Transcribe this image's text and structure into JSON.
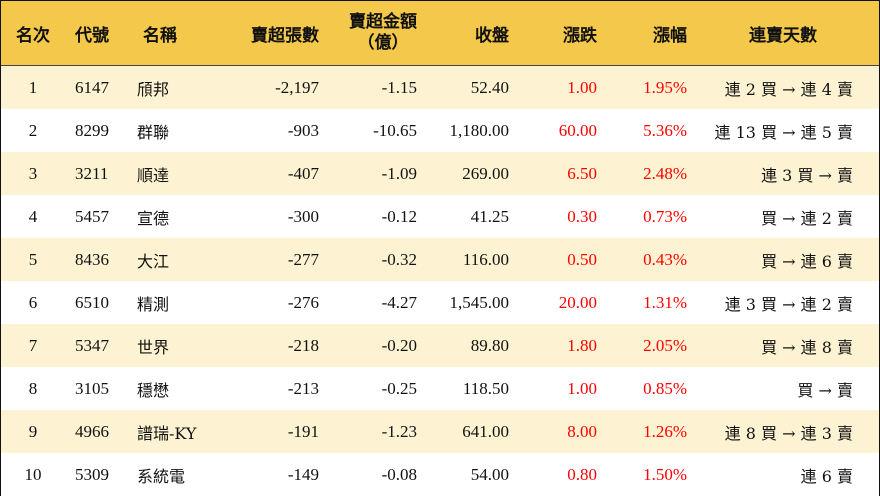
{
  "headers": {
    "rank": "名次",
    "code": "代號",
    "name": "名稱",
    "net_shares": "賣超張數",
    "net_amount_line1": "賣超金額",
    "net_amount_line2": "（億）",
    "close": "收盤",
    "change": "漲跌",
    "pct": "漲幅",
    "streak": "連賣天數"
  },
  "colors": {
    "header_bg": "#f3c84b",
    "odd_row_bg": "#fdf3d2",
    "positive": "#ff0000"
  },
  "rows": [
    {
      "rank": "1",
      "code": "6147",
      "name": "頎邦",
      "net_shares": "-2,197",
      "net_amount": "-1.15",
      "close": "52.40",
      "change": "1.00",
      "pct": "1.95%",
      "streak": "連 2 買 → 連 4 賣"
    },
    {
      "rank": "2",
      "code": "8299",
      "name": "群聯",
      "net_shares": "-903",
      "net_amount": "-10.65",
      "close": "1,180.00",
      "change": "60.00",
      "pct": "5.36%",
      "streak": "連 13 買 → 連 5 賣"
    },
    {
      "rank": "3",
      "code": "3211",
      "name": "順達",
      "net_shares": "-407",
      "net_amount": "-1.09",
      "close": "269.00",
      "change": "6.50",
      "pct": "2.48%",
      "streak": "連 3 買 → 賣"
    },
    {
      "rank": "4",
      "code": "5457",
      "name": "宣德",
      "net_shares": "-300",
      "net_amount": "-0.12",
      "close": "41.25",
      "change": "0.30",
      "pct": "0.73%",
      "streak": "買 → 連 2 賣"
    },
    {
      "rank": "5",
      "code": "8436",
      "name": "大江",
      "net_shares": "-277",
      "net_amount": "-0.32",
      "close": "116.00",
      "change": "0.50",
      "pct": "0.43%",
      "streak": "買 → 連 6 賣"
    },
    {
      "rank": "6",
      "code": "6510",
      "name": "精測",
      "net_shares": "-276",
      "net_amount": "-4.27",
      "close": "1,545.00",
      "change": "20.00",
      "pct": "1.31%",
      "streak": "連 3 買 → 連 2 賣"
    },
    {
      "rank": "7",
      "code": "5347",
      "name": "世界",
      "net_shares": "-218",
      "net_amount": "-0.20",
      "close": "89.80",
      "change": "1.80",
      "pct": "2.05%",
      "streak": "買 → 連 8 賣"
    },
    {
      "rank": "8",
      "code": "3105",
      "name": "穩懋",
      "net_shares": "-213",
      "net_amount": "-0.25",
      "close": "118.50",
      "change": "1.00",
      "pct": "0.85%",
      "streak": "買 → 賣"
    },
    {
      "rank": "9",
      "code": "4966",
      "name": "譜瑞-KY",
      "net_shares": "-191",
      "net_amount": "-1.23",
      "close": "641.00",
      "change": "8.00",
      "pct": "1.26%",
      "streak": "連 8 買 → 連 3 賣"
    },
    {
      "rank": "10",
      "code": "5309",
      "name": "系統電",
      "net_shares": "-149",
      "net_amount": "-0.08",
      "close": "54.00",
      "change": "0.80",
      "pct": "1.50%",
      "streak": "連 6 賣"
    }
  ]
}
